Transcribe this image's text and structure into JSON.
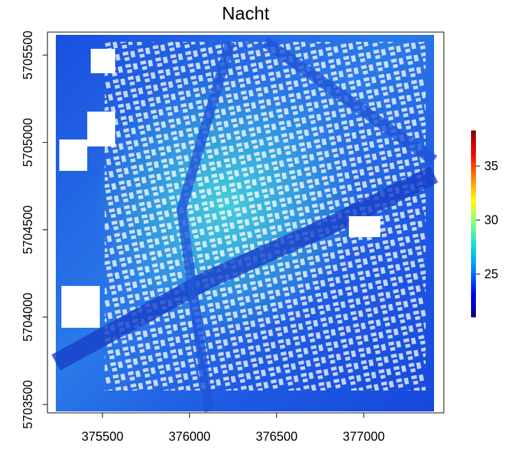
{
  "chart_data": {
    "type": "raster",
    "title": "Nacht",
    "xlim": [
      375184,
      377460
    ],
    "xticks": [
      375500,
      376000,
      376500,
      377000
    ],
    "ylim": [
      5703452,
      5705632
    ],
    "yticks": [
      5703500,
      5704000,
      5704500,
      5705000,
      5705500
    ],
    "colorbar": {
      "lim": [
        21,
        38.3
      ],
      "ticks": [
        25,
        30,
        35
      ],
      "colors": [
        "#00008b",
        "#0000ff",
        "#0080ff",
        "#00e0e0",
        "#80ff80",
        "#ffff00",
        "#ff8000",
        "#ff0000",
        "#8b0000"
      ]
    }
  }
}
